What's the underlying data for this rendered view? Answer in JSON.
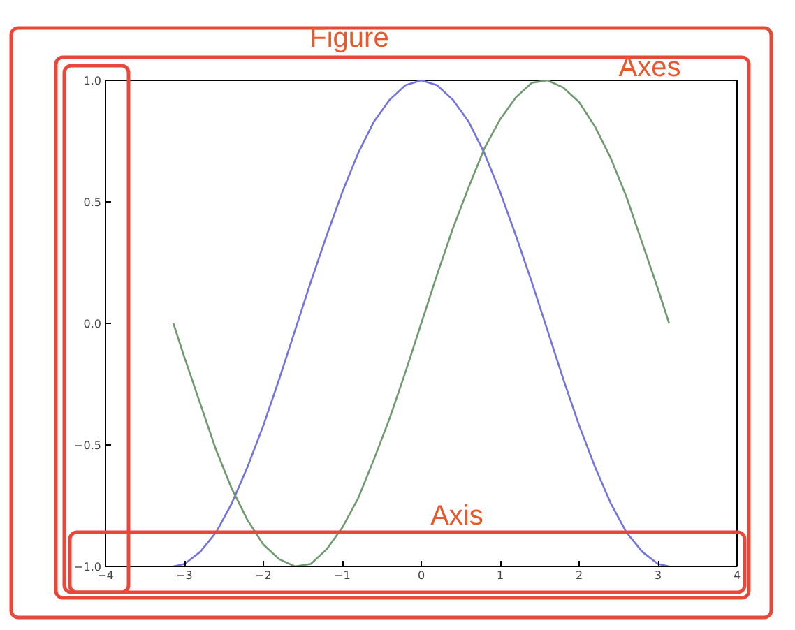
{
  "chart_data": {
    "type": "line",
    "annotations": [
      "Figure",
      "Axes",
      "Axis"
    ],
    "x": [
      -3.14,
      -3.0,
      -2.8,
      -2.6,
      -2.4,
      -2.2,
      -2.0,
      -1.8,
      -1.6,
      -1.4,
      -1.2,
      -1.0,
      -0.8,
      -0.6,
      -0.4,
      -0.2,
      0,
      0.2,
      0.4,
      0.6,
      0.8,
      1.0,
      1.2,
      1.4,
      1.6,
      1.8,
      2.0,
      2.2,
      2.4,
      2.6,
      2.8,
      3.0,
      3.14
    ],
    "series": [
      {
        "color": "#7373e0",
        "values": [
          -1.0,
          -0.99,
          -0.94,
          -0.86,
          -0.74,
          -0.59,
          -0.42,
          -0.23,
          -0.03,
          0.17,
          0.36,
          0.54,
          0.7,
          0.83,
          0.92,
          0.98,
          1.0,
          0.98,
          0.92,
          0.83,
          0.7,
          0.54,
          0.36,
          0.17,
          -0.03,
          -0.23,
          -0.42,
          -0.59,
          -0.74,
          -0.86,
          -0.94,
          -0.99,
          -1.0
        ]
      },
      {
        "color": "#6f9a6f",
        "values": [
          0.0,
          -0.14,
          -0.33,
          -0.52,
          -0.68,
          -0.81,
          -0.91,
          -0.97,
          -1.0,
          -0.99,
          -0.93,
          -0.84,
          -0.72,
          -0.56,
          -0.39,
          -0.2,
          0.0,
          0.2,
          0.39,
          0.56,
          0.72,
          0.84,
          0.93,
          0.99,
          1.0,
          0.97,
          0.91,
          0.81,
          0.68,
          0.52,
          0.33,
          0.14,
          0.0
        ]
      }
    ],
    "xlim": [
      -4,
      4
    ],
    "ylim": [
      -1,
      1
    ],
    "xticks": [
      {
        "value": -4,
        "label": "−4"
      },
      {
        "value": -3,
        "label": "−3"
      },
      {
        "value": -2,
        "label": "−2"
      },
      {
        "value": -1,
        "label": "−1"
      },
      0,
      1,
      2,
      3,
      4
    ],
    "yticks": [
      {
        "value": -1,
        "label": "−1.0"
      },
      {
        "value": -0.5,
        "label": "−0.5"
      },
      {
        "value": 0,
        "label": "0.0"
      },
      {
        "value": 0.5,
        "label": "0.5"
      },
      {
        "value": 1,
        "label": "1.0"
      }
    ],
    "grid": false
  }
}
